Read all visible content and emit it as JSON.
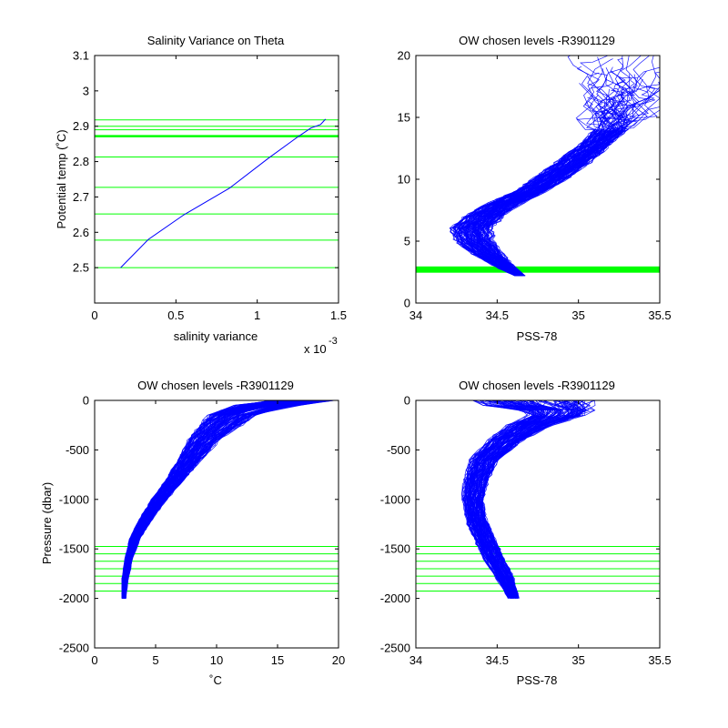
{
  "colors": {
    "data": "#0000ff",
    "levels": "#00ff00",
    "axes": "#000000",
    "background": "#ffffff"
  },
  "chart_data": [
    {
      "id": "p1",
      "type": "line",
      "title": "Salinity Variance on Theta",
      "xlabel": "salinity variance",
      "ylabel": "Potential temp (˚C)",
      "x_exponent_label": "x 10",
      "x_exponent_power": "-3",
      "xlim": [
        0,
        1.5
      ],
      "ylim": [
        2.4,
        3.1
      ],
      "xticks": [
        0,
        0.5,
        1,
        1.5
      ],
      "xtick_labels": [
        "0",
        "0.5",
        "1",
        "1.5"
      ],
      "yticks": [
        2.5,
        2.6,
        2.7,
        2.8,
        2.9,
        3,
        3.1
      ],
      "ytick_labels": [
        "2.5",
        "2.6",
        "2.7",
        "2.8",
        "2.9",
        "3",
        "3.1"
      ],
      "series": [
        {
          "x": [
            0.16,
            0.33,
            0.55,
            0.83,
            1.07,
            1.25,
            1.33,
            1.39,
            1.42
          ],
          "y": [
            2.5,
            2.58,
            2.65,
            2.725,
            2.81,
            2.87,
            2.895,
            2.905,
            2.92
          ]
        }
      ],
      "level_lines": [
        2.5,
        2.578,
        2.652,
        2.727,
        2.813,
        2.872,
        2.89,
        2.9,
        2.918
      ],
      "bold_levels": [
        2.872
      ]
    },
    {
      "id": "p2",
      "type": "line",
      "title": "OW chosen levels -R3901129",
      "xlabel": "PSS-78",
      "ylabel": "",
      "xlim": [
        34,
        35.5
      ],
      "ylim": [
        0,
        20
      ],
      "xticks": [
        34,
        34.5,
        35,
        35.5
      ],
      "xtick_labels": [
        "34",
        "34.5",
        "35",
        "35.5"
      ],
      "yticks": [
        0,
        5,
        10,
        15,
        20
      ],
      "ytick_labels": [
        "0",
        "5",
        "10",
        "15",
        "20"
      ],
      "envelope": [
        {
          "y": 2.2,
          "x": 34.64,
          "spread": 0.03
        },
        {
          "y": 3,
          "x": 34.54,
          "spread": 0.06
        },
        {
          "y": 4,
          "x": 34.44,
          "spread": 0.09
        },
        {
          "y": 5,
          "x": 34.36,
          "spread": 0.11
        },
        {
          "y": 6,
          "x": 34.34,
          "spread": 0.12
        },
        {
          "y": 7,
          "x": 34.42,
          "spread": 0.11
        },
        {
          "y": 8,
          "x": 34.54,
          "spread": 0.1
        },
        {
          "y": 9,
          "x": 34.7,
          "spread": 0.09
        },
        {
          "y": 10,
          "x": 34.82,
          "spread": 0.1
        },
        {
          "y": 11,
          "x": 34.93,
          "spread": 0.1
        },
        {
          "y": 12,
          "x": 35.03,
          "spread": 0.1
        },
        {
          "y": 13,
          "x": 35.12,
          "spread": 0.09
        },
        {
          "y": 14,
          "x": 35.2,
          "spread": 0.1
        }
      ],
      "level_lines": [
        2.5,
        2.578,
        2.652,
        2.727,
        2.813,
        2.872,
        2.89,
        2.9,
        2.918
      ]
    },
    {
      "id": "p3",
      "type": "line",
      "title": "OW chosen levels -R3901129",
      "xlabel": "˚C",
      "ylabel": "Pressure (dbar)",
      "xlim": [
        0,
        20
      ],
      "ylim": [
        -2500,
        0
      ],
      "xticks": [
        0,
        5,
        10,
        15,
        20
      ],
      "xtick_labels": [
        "0",
        "5",
        "10",
        "15",
        "20"
      ],
      "yticks": [
        -2500,
        -2000,
        -1500,
        -1000,
        -500,
        0
      ],
      "ytick_labels": [
        "-2500",
        "-2000",
        "-1500",
        "-1000",
        "-500",
        "0"
      ],
      "envelope": [
        {
          "y": -2000,
          "x": 2.4,
          "spread": 0.15
        },
        {
          "y": -1800,
          "x": 2.5,
          "spread": 0.25
        },
        {
          "y": -1600,
          "x": 2.8,
          "spread": 0.3
        },
        {
          "y": -1400,
          "x": 3.3,
          "spread": 0.4
        },
        {
          "y": -1200,
          "x": 4.2,
          "spread": 0.5
        },
        {
          "y": -1000,
          "x": 5.3,
          "spread": 0.6
        },
        {
          "y": -800,
          "x": 6.6,
          "spread": 0.7
        },
        {
          "y": -600,
          "x": 7.8,
          "spread": 0.9
        },
        {
          "y": -400,
          "x": 9,
          "spread": 1.2
        },
        {
          "y": -250,
          "x": 10.3,
          "spread": 1.6
        },
        {
          "y": -150,
          "x": 11.3,
          "spread": 1.8
        },
        {
          "y": -80,
          "x": 13,
          "spread": 2.2
        },
        {
          "y": -20,
          "x": 15.5,
          "spread": 2.6
        },
        {
          "y": 0,
          "x": 17,
          "spread": 2.5
        }
      ],
      "level_lines": [
        -1475,
        -1550,
        -1625,
        -1700,
        -1775,
        -1850,
        -1925
      ]
    },
    {
      "id": "p4",
      "type": "line",
      "title": "OW chosen levels -R3901129",
      "xlabel": "PSS-78",
      "ylabel": "",
      "xlim": [
        34,
        35.5
      ],
      "ylim": [
        -2500,
        0
      ],
      "xticks": [
        34,
        34.5,
        35,
        35.5
      ],
      "xtick_labels": [
        "34",
        "34.5",
        "35",
        "35.5"
      ],
      "yticks": [
        -2500,
        -2000,
        -1500,
        -1000,
        -500,
        0
      ],
      "ytick_labels": [
        "-2500",
        "-2000",
        "-1500",
        "-1000",
        "-500",
        "0"
      ],
      "envelope": [
        {
          "y": -2000,
          "x": 34.6,
          "spread": 0.03
        },
        {
          "y": -1800,
          "x": 34.55,
          "spread": 0.05
        },
        {
          "y": -1600,
          "x": 34.48,
          "spread": 0.06
        },
        {
          "y": -1400,
          "x": 34.42,
          "spread": 0.06
        },
        {
          "y": -1200,
          "x": 34.37,
          "spread": 0.06
        },
        {
          "y": -1000,
          "x": 34.35,
          "spread": 0.06
        },
        {
          "y": -800,
          "x": 34.37,
          "spread": 0.07
        },
        {
          "y": -600,
          "x": 34.42,
          "spread": 0.08
        },
        {
          "y": -400,
          "x": 34.55,
          "spread": 0.1
        },
        {
          "y": -250,
          "x": 34.7,
          "spread": 0.13
        },
        {
          "y": -120,
          "x": 34.9,
          "spread": 0.17
        },
        {
          "y": -50,
          "x": 34.75,
          "spread": 0.3
        },
        {
          "y": 0,
          "x": 34.7,
          "spread": 0.35
        }
      ],
      "level_lines": [
        -1475,
        -1550,
        -1625,
        -1700,
        -1775,
        -1850,
        -1925
      ]
    }
  ]
}
